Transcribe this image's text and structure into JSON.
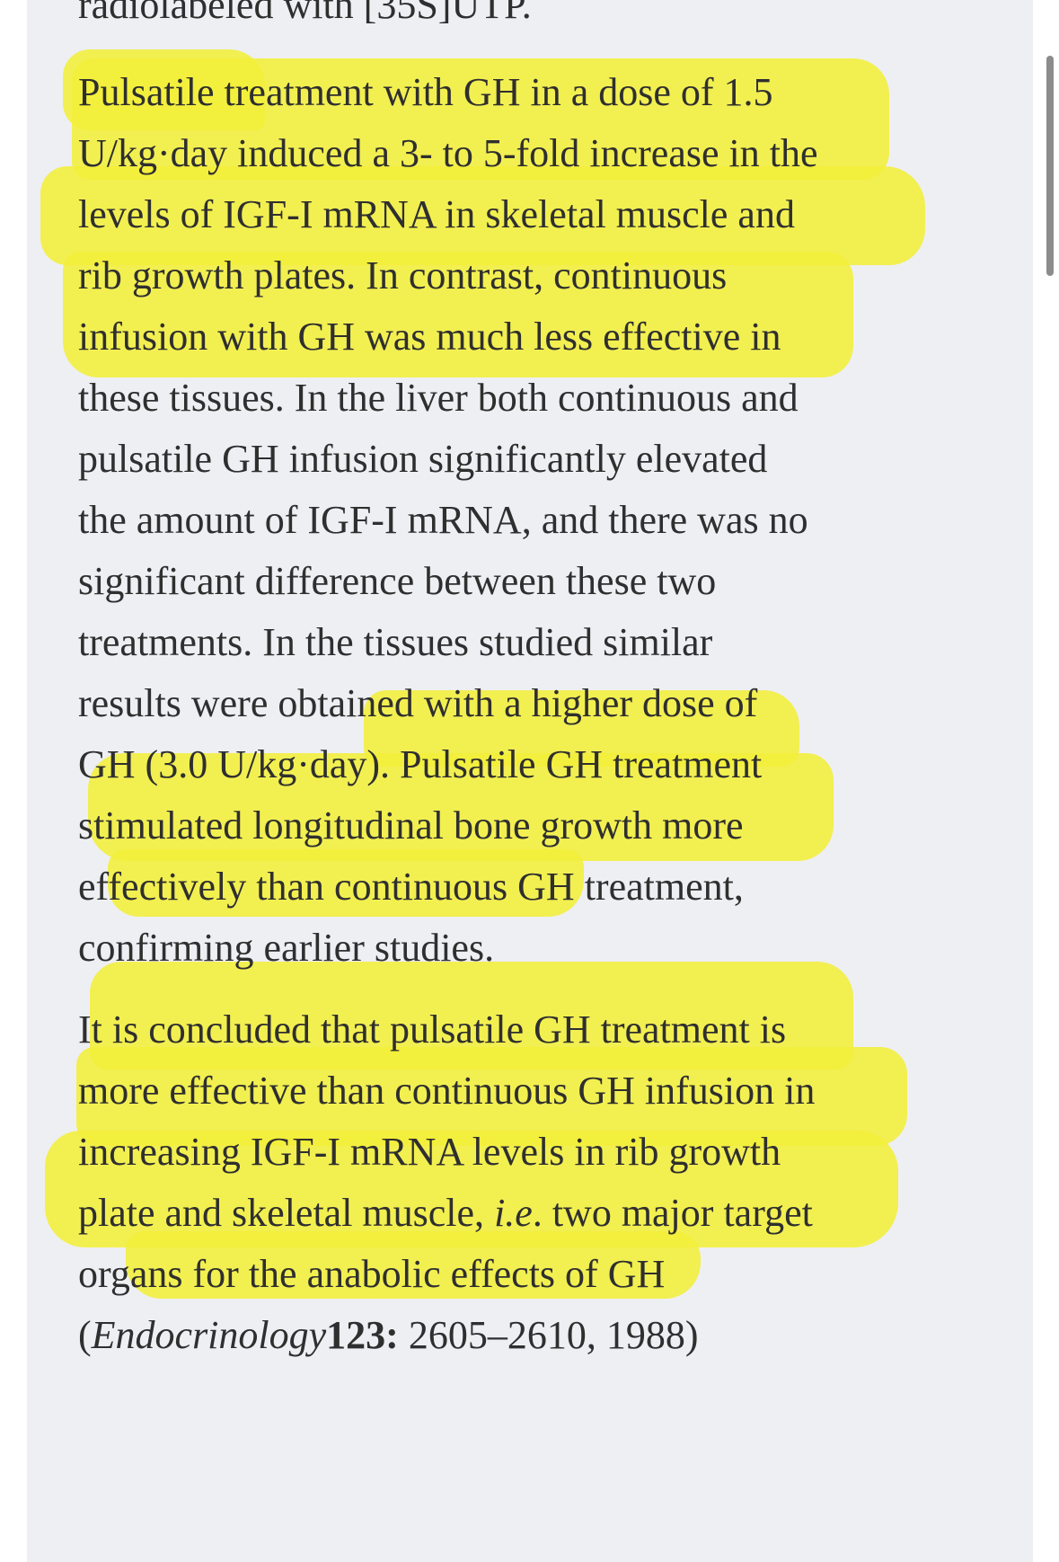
{
  "article": {
    "top_partial_line": "radiolabeled with [35S]UTP.",
    "paragraph1": [
      "Pulsatile treatment with GH in a dose of 1.5",
      "U/kg·day induced a 3- to 5-fold increase in the",
      "levels of IGF-I mRNA in skeletal muscle and",
      "rib growth plates. In contrast, continuous",
      "infusion with GH was much less effective in",
      "these tissues. In the liver both continuous and",
      "pulsatile GH infusion significantly elevated",
      "the amount of IGF-I mRNA, and there was no",
      "significant difference between these two",
      "treatments. In the tissues studied similar",
      "results were obtained with a higher dose of",
      "GH (3.0 U/kg·day). Pulsatile GH treatment",
      "stimulated longitudinal bone growth more",
      "effectively than continuous GH treatment,",
      "confirming earlier studies."
    ],
    "paragraph2": [
      "It is concluded that pulsatile GH treatment is",
      "more effective than continuous GH infusion in",
      "increasing IGF-I mRNA levels in rib growth"
    ],
    "p2_line4_before": "plate and skeletal muscle, ",
    "p2_line4_italic": "i.e",
    "p2_line4_after": ". two major target",
    "p2_line5": "organs for the anabolic effects of GH",
    "citation_open": "(",
    "citation_journal": "Endocrinology",
    "citation_volume": "123:",
    "citation_rest": " 2605–2610, 1988)"
  },
  "colors": {
    "highlight": "#f3ef3a",
    "panel_background": "#eeeff3",
    "text": "#2f2f2f"
  }
}
